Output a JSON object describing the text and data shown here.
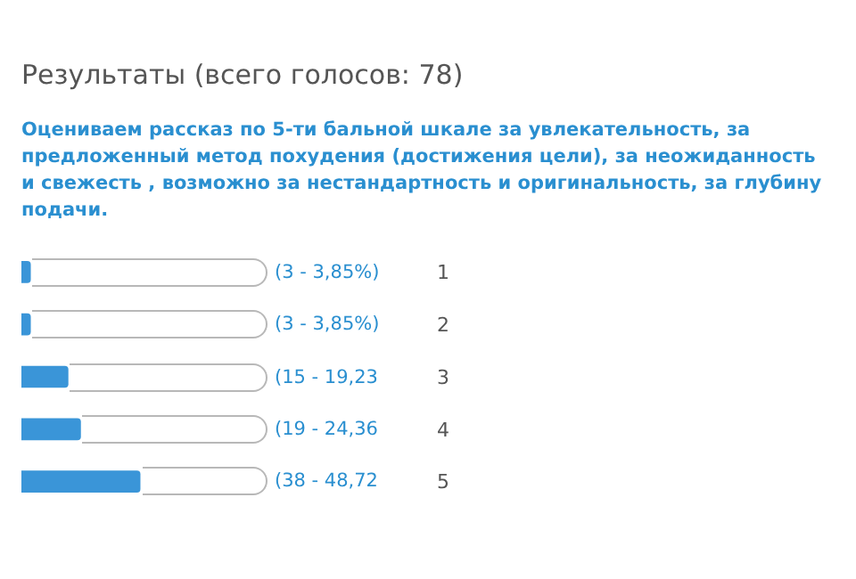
{
  "chart_data": {
    "type": "bar",
    "orientation": "horizontal",
    "title": "Результаты (всего голосов: 78)",
    "subtitle": "Оцениваем рассказ по 5-ти бальной шкале за увлекательность, за предложенный метод похудения (достижения цели), за неожиданность и свежесть , возможно за нестандартность и оригинальность, за глубину подачи.",
    "categories": [
      "1",
      "2",
      "3",
      "4",
      "5"
    ],
    "values": [
      3,
      3,
      15,
      19,
      38
    ],
    "value_labels": [
      "(3 - 3,85%)",
      "(3 - 3,85%)",
      "(15 - 19,23",
      "(19 - 24,36",
      "(38 - 48,72"
    ],
    "color": "#3a95d8",
    "grid": false
  }
}
